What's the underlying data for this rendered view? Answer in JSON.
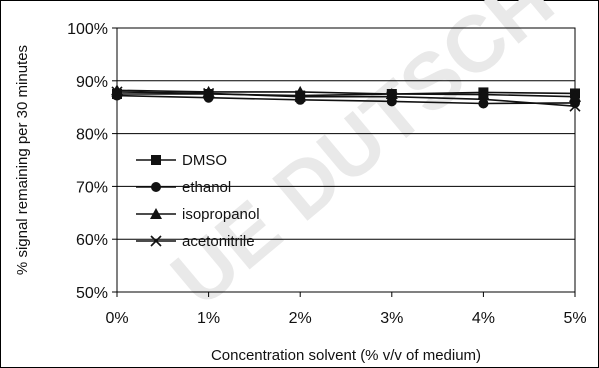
{
  "watermark": "UE DUTSCH",
  "chart_data": {
    "type": "line",
    "xlabel": "Concentration solvent (% v/v of medium)",
    "ylabel": "% signal remaining per 30 minutes",
    "categories": [
      "0%",
      "1%",
      "2%",
      "3%",
      "4%",
      "5%"
    ],
    "x": [
      0,
      1,
      2,
      3,
      4,
      5
    ],
    "ylim": [
      50,
      100
    ],
    "yticks": [
      50,
      60,
      70,
      80,
      90,
      100
    ],
    "ytick_labels": [
      "50%",
      "60%",
      "70%",
      "80%",
      "90%",
      "100%"
    ],
    "grid": "horizontal",
    "legend_position": "left-center",
    "series": [
      {
        "name": "DMSO",
        "marker": "square",
        "values": [
          87.5,
          87.5,
          87.2,
          87.5,
          87.8,
          87.6
        ]
      },
      {
        "name": "ethanol",
        "marker": "circle",
        "values": [
          87.2,
          86.8,
          86.4,
          86.1,
          85.7,
          85.8
        ]
      },
      {
        "name": "isopropanol",
        "marker": "triangle",
        "values": [
          88.2,
          87.9,
          87.9,
          87.5,
          87.4,
          87.0
        ]
      },
      {
        "name": "acetonitrile",
        "marker": "x",
        "values": [
          87.9,
          87.6,
          87.0,
          87.0,
          86.5,
          85.2
        ]
      }
    ]
  }
}
